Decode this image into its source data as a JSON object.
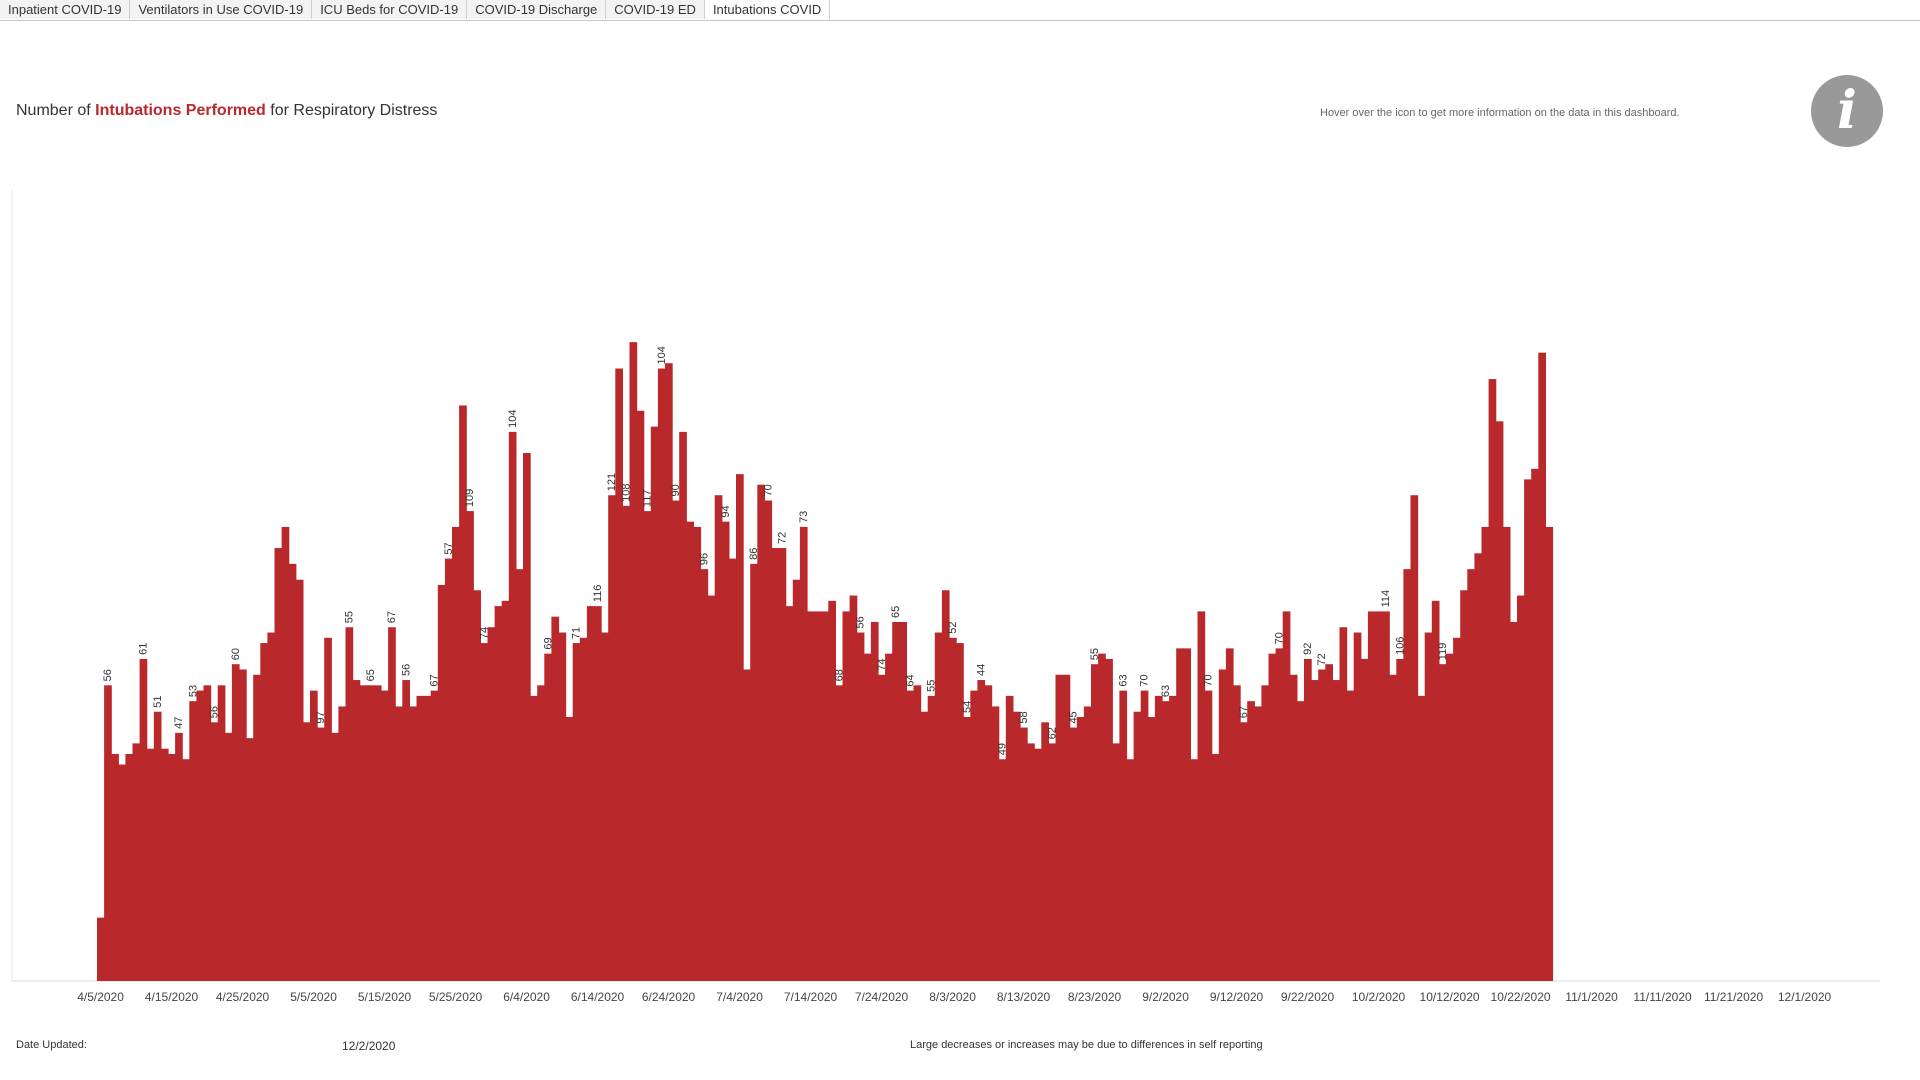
{
  "tabs": [
    {
      "label": "Inpatient COVID-19",
      "active": false
    },
    {
      "label": "Ventilators in Use COVID-19",
      "active": false
    },
    {
      "label": "ICU Beds for COVID-19",
      "active": false
    },
    {
      "label": "COVID-19 Discharge",
      "active": false
    },
    {
      "label": "COVID-19 ED",
      "active": false
    },
    {
      "label": "Intubations COVID",
      "active": true
    }
  ],
  "header": {
    "title_prefix": "Number of ",
    "title_highlight": "Intubations Performed",
    "title_suffix": " for Respiratory Distress",
    "hover_note": "Hover over the icon to get more information on the data in this dashboard.",
    "info_icon": "info-icon"
  },
  "footer": {
    "date_updated_label": "Date Updated:",
    "date_updated_value": "12/2/2020",
    "note": "Large decreases or increases may be due to differences in self reporting"
  },
  "colors": {
    "bar": "#b9292b",
    "highlight_text": "#b9292b"
  },
  "chart_data": {
    "type": "bar",
    "title": "Number of Intubations Performed for Respiratory Distress",
    "xlabel": "",
    "ylabel": "",
    "start_date": "4/5/2020",
    "x_tick_labels": [
      "4/5/2020",
      "4/15/2020",
      "4/25/2020",
      "5/5/2020",
      "5/15/2020",
      "5/25/2020",
      "6/4/2020",
      "6/14/2020",
      "6/24/2020",
      "7/4/2020",
      "7/14/2020",
      "7/24/2020",
      "8/3/2020",
      "8/13/2020",
      "8/23/2020",
      "9/2/2020",
      "9/12/2020",
      "9/22/2020",
      "10/2/2020",
      "10/12/2020",
      "10/22/2020",
      "11/1/2020",
      "11/11/2020",
      "11/21/2020",
      "12/1/2020"
    ],
    "ylim": [
      0,
      125
    ],
    "grid": false,
    "values": [
      12,
      56,
      43,
      41,
      43,
      45,
      61,
      44,
      51,
      44,
      43,
      47,
      42,
      53,
      55,
      56,
      49,
      56,
      47,
      60,
      59,
      46,
      58,
      64,
      66,
      82,
      86,
      79,
      76,
      49,
      55,
      48,
      65,
      47,
      52,
      67,
      57,
      56,
      56,
      56,
      55,
      67,
      52,
      57,
      52,
      54,
      54,
      55,
      75,
      80,
      86,
      109,
      89,
      74,
      64,
      67,
      71,
      72,
      104,
      78,
      100,
      54,
      56,
      62,
      69,
      66,
      50,
      64,
      65,
      71,
      71,
      66,
      92,
      116,
      90,
      121,
      108,
      89,
      105,
      116,
      117,
      91,
      104,
      87,
      86,
      78,
      73,
      92,
      87,
      80,
      96,
      59,
      79,
      94,
      91,
      82,
      82,
      71,
      76,
      86,
      70,
      70,
      70,
      72,
      56,
      70,
      73,
      66,
      62,
      68,
      58,
      62,
      68,
      68,
      55,
      56,
      51,
      54,
      66,
      74,
      65,
      64,
      50,
      55,
      57,
      56,
      52,
      42,
      54,
      51,
      48,
      45,
      44,
      49,
      45,
      58,
      58,
      48,
      50,
      52,
      60,
      62,
      61,
      45,
      55,
      42,
      51,
      55,
      50,
      54,
      53,
      54,
      63,
      63,
      42,
      70,
      55,
      43,
      59,
      63,
      56,
      49,
      53,
      52,
      56,
      62,
      63,
      70,
      58,
      53,
      61,
      57,
      59,
      60,
      57,
      67,
      55,
      66,
      61,
      70,
      70,
      70,
      58,
      61,
      78,
      92,
      54,
      66,
      72,
      60,
      62,
      65,
      74,
      78,
      81,
      86,
      114,
      106,
      86,
      68,
      73,
      95,
      97,
      119,
      86
    ],
    "labeled_values": [
      {
        "date": "4/6/2020",
        "value": 56
      },
      {
        "date": "4/11/2020",
        "value": 61
      },
      {
        "date": "4/13/2020",
        "value": 51
      },
      {
        "date": "4/16/2020",
        "value": 47
      },
      {
        "date": "4/18/2020",
        "value": 53
      },
      {
        "date": "4/21/2020",
        "value": 56
      },
      {
        "date": "4/24/2020",
        "value": 60
      },
      {
        "date": "5/6/2020",
        "value": 97
      },
      {
        "date": "5/10/2020",
        "value": 55
      },
      {
        "date": "5/13/2020",
        "value": 65
      },
      {
        "date": "5/16/2020",
        "value": 67
      },
      {
        "date": "5/18/2020",
        "value": 56
      },
      {
        "date": "5/22/2020",
        "value": 67
      },
      {
        "date": "5/24/2020",
        "value": 57
      },
      {
        "date": "5/27/2020",
        "value": 109
      },
      {
        "date": "5/29/2020",
        "value": 74
      },
      {
        "date": "6/2/2020",
        "value": 104
      },
      {
        "date": "6/7/2020",
        "value": 69
      },
      {
        "date": "6/11/2020",
        "value": 71
      },
      {
        "date": "6/14/2020",
        "value": 116
      },
      {
        "date": "6/16/2020",
        "value": 121
      },
      {
        "date": "6/18/2020",
        "value": 108
      },
      {
        "date": "6/21/2020",
        "value": 117
      },
      {
        "date": "6/23/2020",
        "value": 104
      },
      {
        "date": "6/25/2020",
        "value": 90
      },
      {
        "date": "6/29/2020",
        "value": 96
      },
      {
        "date": "7/2/2020",
        "value": 94
      },
      {
        "date": "7/6/2020",
        "value": 86
      },
      {
        "date": "7/8/2020",
        "value": 70
      },
      {
        "date": "7/10/2020",
        "value": 72
      },
      {
        "date": "7/13/2020",
        "value": 73
      },
      {
        "date": "7/18/2020",
        "value": 68
      },
      {
        "date": "7/21/2020",
        "value": 56
      },
      {
        "date": "7/24/2020",
        "value": 74
      },
      {
        "date": "7/26/2020",
        "value": 65
      },
      {
        "date": "7/28/2020",
        "value": 64
      },
      {
        "date": "7/31/2020",
        "value": 55
      },
      {
        "date": "8/3/2020",
        "value": 52
      },
      {
        "date": "8/5/2020",
        "value": 54
      },
      {
        "date": "8/7/2020",
        "value": 44
      },
      {
        "date": "8/10/2020",
        "value": 49
      },
      {
        "date": "8/13/2020",
        "value": 58
      },
      {
        "date": "8/17/2020",
        "value": 62
      },
      {
        "date": "8/20/2020",
        "value": 45
      },
      {
        "date": "8/23/2020",
        "value": 55
      },
      {
        "date": "8/27/2020",
        "value": 63
      },
      {
        "date": "8/30/2020",
        "value": 70
      },
      {
        "date": "9/2/2020",
        "value": 63
      },
      {
        "date": "9/8/2020",
        "value": 70
      },
      {
        "date": "9/13/2020",
        "value": 67
      },
      {
        "date": "9/18/2020",
        "value": 70
      },
      {
        "date": "9/22/2020",
        "value": 92
      },
      {
        "date": "9/24/2020",
        "value": 72
      },
      {
        "date": "10/3/2020",
        "value": 114
      },
      {
        "date": "10/5/2020",
        "value": 106
      },
      {
        "date": "10/11/2020",
        "value": 119
      }
    ]
  }
}
